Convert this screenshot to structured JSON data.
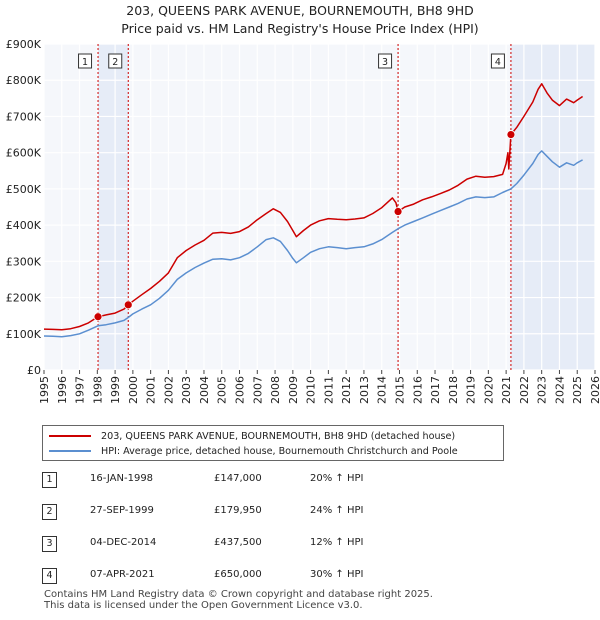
{
  "title_line1": "203, QUEENS PARK AVENUE, BOURNEMOUTH, BH8 9HD",
  "title_line2": "Price paid vs. HM Land Registry's House Price Index (HPI)",
  "chart_data": {
    "type": "line",
    "xlim": [
      1995,
      2026
    ],
    "ylim": [
      0,
      900000
    ],
    "yticks": [
      0,
      100000,
      200000,
      300000,
      400000,
      500000,
      600000,
      700000,
      800000,
      900000
    ],
    "ytick_labels": [
      "£0",
      "£100K",
      "£200K",
      "£300K",
      "£400K",
      "£500K",
      "£600K",
      "£700K",
      "£800K",
      "£900K"
    ],
    "xticks": [
      1995,
      1996,
      1997,
      1998,
      1999,
      2000,
      2001,
      2002,
      2003,
      2004,
      2005,
      2006,
      2007,
      2008,
      2009,
      2010,
      2011,
      2012,
      2013,
      2014,
      2015,
      2016,
      2017,
      2018,
      2019,
      2020,
      2021,
      2022,
      2023,
      2024,
      2025,
      2026
    ],
    "grid": true,
    "colors": {
      "price": "#cc0000",
      "hpi": "#5b8fd0",
      "band": "#e6ecf7",
      "vline": "#cc0000"
    },
    "series": [
      {
        "name": "203, QUEENS PARK AVENUE, BOURNEMOUTH, BH8 9HD (detached house)",
        "color": "#cc0000",
        "points": [
          [
            1995.0,
            113000
          ],
          [
            1995.5,
            112000
          ],
          [
            1996.0,
            111000
          ],
          [
            1996.5,
            114000
          ],
          [
            1997.0,
            120000
          ],
          [
            1997.5,
            130000
          ],
          [
            1998.04,
            147000
          ],
          [
            1998.5,
            152000
          ],
          [
            1999.0,
            157000
          ],
          [
            1999.5,
            168000
          ],
          [
            1999.74,
            179950
          ],
          [
            2000.0,
            190000
          ],
          [
            2000.5,
            208000
          ],
          [
            2001.0,
            225000
          ],
          [
            2001.5,
            245000
          ],
          [
            2002.0,
            268000
          ],
          [
            2002.5,
            310000
          ],
          [
            2003.0,
            330000
          ],
          [
            2003.5,
            345000
          ],
          [
            2004.0,
            358000
          ],
          [
            2004.5,
            378000
          ],
          [
            2005.0,
            380000
          ],
          [
            2005.5,
            377000
          ],
          [
            2006.0,
            382000
          ],
          [
            2006.5,
            395000
          ],
          [
            2007.0,
            415000
          ],
          [
            2007.5,
            432000
          ],
          [
            2007.9,
            445000
          ],
          [
            2008.3,
            435000
          ],
          [
            2008.7,
            410000
          ],
          [
            2009.0,
            385000
          ],
          [
            2009.2,
            368000
          ],
          [
            2009.6,
            385000
          ],
          [
            2010.0,
            400000
          ],
          [
            2010.5,
            412000
          ],
          [
            2011.0,
            418000
          ],
          [
            2011.5,
            416000
          ],
          [
            2012.0,
            415000
          ],
          [
            2012.5,
            417000
          ],
          [
            2013.0,
            420000
          ],
          [
            2013.5,
            432000
          ],
          [
            2014.0,
            448000
          ],
          [
            2014.6,
            475000
          ],
          [
            2014.8,
            462000
          ],
          [
            2014.92,
            437500
          ],
          [
            2015.3,
            450000
          ],
          [
            2015.8,
            458000
          ],
          [
            2016.3,
            470000
          ],
          [
            2016.8,
            478000
          ],
          [
            2017.3,
            487000
          ],
          [
            2017.8,
            497000
          ],
          [
            2018.3,
            510000
          ],
          [
            2018.8,
            527000
          ],
          [
            2019.3,
            535000
          ],
          [
            2019.8,
            532000
          ],
          [
            2020.3,
            534000
          ],
          [
            2020.8,
            540000
          ],
          [
            2021.0,
            570000
          ],
          [
            2021.1,
            600000
          ],
          [
            2021.15,
            555000
          ],
          [
            2021.27,
            650000
          ],
          [
            2021.6,
            670000
          ],
          [
            2022.0,
            700000
          ],
          [
            2022.5,
            740000
          ],
          [
            2022.8,
            775000
          ],
          [
            2023.0,
            790000
          ],
          [
            2023.3,
            765000
          ],
          [
            2023.6,
            745000
          ],
          [
            2024.0,
            730000
          ],
          [
            2024.4,
            748000
          ],
          [
            2024.8,
            738000
          ],
          [
            2025.0,
            745000
          ],
          [
            2025.3,
            755000
          ]
        ]
      },
      {
        "name": "HPI: Average price, detached house, Bournemouth Christchurch and Poole",
        "color": "#5b8fd0",
        "points": [
          [
            1995.0,
            94000
          ],
          [
            1995.5,
            93000
          ],
          [
            1996.0,
            92000
          ],
          [
            1996.5,
            95000
          ],
          [
            1997.0,
            100000
          ],
          [
            1997.5,
            110000
          ],
          [
            1998.04,
            122000
          ],
          [
            1998.5,
            125000
          ],
          [
            1999.0,
            130000
          ],
          [
            1999.5,
            137000
          ],
          [
            1999.74,
            145000
          ],
          [
            2000.0,
            155000
          ],
          [
            2000.5,
            168000
          ],
          [
            2001.0,
            180000
          ],
          [
            2001.5,
            198000
          ],
          [
            2002.0,
            220000
          ],
          [
            2002.5,
            250000
          ],
          [
            2003.0,
            268000
          ],
          [
            2003.5,
            283000
          ],
          [
            2004.0,
            295000
          ],
          [
            2004.5,
            306000
          ],
          [
            2005.0,
            307000
          ],
          [
            2005.5,
            304000
          ],
          [
            2006.0,
            310000
          ],
          [
            2006.5,
            322000
          ],
          [
            2007.0,
            340000
          ],
          [
            2007.5,
            360000
          ],
          [
            2007.9,
            365000
          ],
          [
            2008.3,
            355000
          ],
          [
            2008.7,
            330000
          ],
          [
            2009.0,
            308000
          ],
          [
            2009.2,
            296000
          ],
          [
            2009.6,
            310000
          ],
          [
            2010.0,
            325000
          ],
          [
            2010.5,
            335000
          ],
          [
            2011.0,
            340000
          ],
          [
            2011.5,
            338000
          ],
          [
            2012.0,
            335000
          ],
          [
            2012.5,
            338000
          ],
          [
            2013.0,
            340000
          ],
          [
            2013.5,
            348000
          ],
          [
            2014.0,
            360000
          ],
          [
            2014.6,
            380000
          ],
          [
            2014.92,
            390000
          ],
          [
            2015.3,
            400000
          ],
          [
            2015.8,
            410000
          ],
          [
            2016.3,
            420000
          ],
          [
            2016.8,
            430000
          ],
          [
            2017.3,
            440000
          ],
          [
            2017.8,
            450000
          ],
          [
            2018.3,
            460000
          ],
          [
            2018.8,
            472000
          ],
          [
            2019.3,
            478000
          ],
          [
            2019.8,
            476000
          ],
          [
            2020.3,
            478000
          ],
          [
            2020.8,
            490000
          ],
          [
            2021.27,
            500000
          ],
          [
            2021.6,
            515000
          ],
          [
            2022.0,
            538000
          ],
          [
            2022.5,
            570000
          ],
          [
            2022.8,
            595000
          ],
          [
            2023.0,
            605000
          ],
          [
            2023.3,
            590000
          ],
          [
            2023.6,
            575000
          ],
          [
            2024.0,
            560000
          ],
          [
            2024.4,
            572000
          ],
          [
            2024.8,
            565000
          ],
          [
            2025.0,
            572000
          ],
          [
            2025.3,
            580000
          ]
        ]
      }
    ],
    "sales": [
      {
        "label": "1",
        "x": 1998.04,
        "value": 147000
      },
      {
        "label": "2",
        "x": 1999.74,
        "value": 179950
      },
      {
        "label": "3",
        "x": 2014.92,
        "value": 437500
      },
      {
        "label": "4",
        "x": 2021.27,
        "value": 650000
      }
    ],
    "shaded_bands": [
      [
        1998.04,
        1999.74
      ],
      [
        2021.27,
        2026
      ]
    ]
  },
  "legend": {
    "price_label": "203, QUEENS PARK AVENUE, BOURNEMOUTH, BH8 9HD (detached house)",
    "hpi_label": "HPI: Average price, detached house, Bournemouth Christchurch and Poole"
  },
  "sales_table": [
    {
      "num": "1",
      "date": "16-JAN-1998",
      "price": "£147,000",
      "hpi": "20% ↑ HPI"
    },
    {
      "num": "2",
      "date": "27-SEP-1999",
      "price": "£179,950",
      "hpi": "24% ↑ HPI"
    },
    {
      "num": "3",
      "date": "04-DEC-2014",
      "price": "£437,500",
      "hpi": "12% ↑ HPI"
    },
    {
      "num": "4",
      "date": "07-APR-2021",
      "price": "£650,000",
      "hpi": "30% ↑ HPI"
    }
  ],
  "footer_line1": "Contains HM Land Registry data © Crown copyright and database right 2025.",
  "footer_line2": "This data is licensed under the Open Government Licence v3.0."
}
